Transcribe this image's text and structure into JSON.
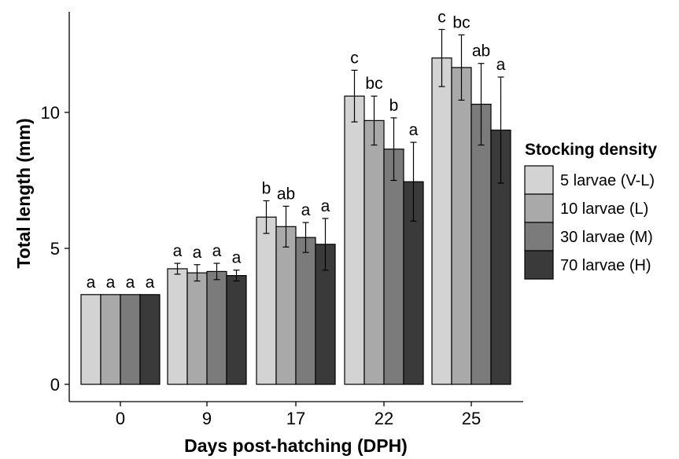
{
  "chart_data": {
    "type": "bar",
    "categories": [
      "0",
      "9",
      "17",
      "22",
      "25"
    ],
    "xlabel": "Days post-hatching (DPH)",
    "ylabel": "Total length (mm)",
    "ylim": [
      0,
      13.7
    ],
    "yticks": [
      0,
      5,
      10
    ],
    "grid": false,
    "legend": {
      "title": "Stocking density",
      "placement": "right"
    },
    "series": [
      {
        "name": "5 larvae (V-L)",
        "color": "#d3d3d3",
        "values": [
          3.3,
          4.25,
          6.15,
          10.6,
          12.0
        ],
        "errors": [
          0.0,
          0.2,
          0.6,
          0.95,
          1.05
        ],
        "labels": [
          "a",
          "a",
          "b",
          "c",
          "c"
        ]
      },
      {
        "name": "10 larvae (L)",
        "color": "#a9a9a9",
        "values": [
          3.3,
          4.1,
          5.8,
          9.7,
          11.65
        ],
        "errors": [
          0.0,
          0.3,
          0.75,
          0.9,
          1.2
        ],
        "labels": [
          "a",
          "a",
          "ab",
          "bc",
          "bc"
        ]
      },
      {
        "name": "30 larvae (M)",
        "color": "#7b7b7b",
        "values": [
          3.3,
          4.15,
          5.4,
          8.65,
          10.3
        ],
        "errors": [
          0.0,
          0.3,
          0.55,
          1.15,
          1.5
        ],
        "labels": [
          "a",
          "a",
          "a",
          "b",
          "ab"
        ]
      },
      {
        "name": "70 larvae (H)",
        "color": "#3a3a3a",
        "values": [
          3.3,
          4.0,
          5.15,
          7.45,
          9.35
        ],
        "errors": [
          0.0,
          0.2,
          0.95,
          1.45,
          1.95
        ],
        "labels": [
          "a",
          "a",
          "a",
          "a",
          "a"
        ]
      }
    ]
  }
}
